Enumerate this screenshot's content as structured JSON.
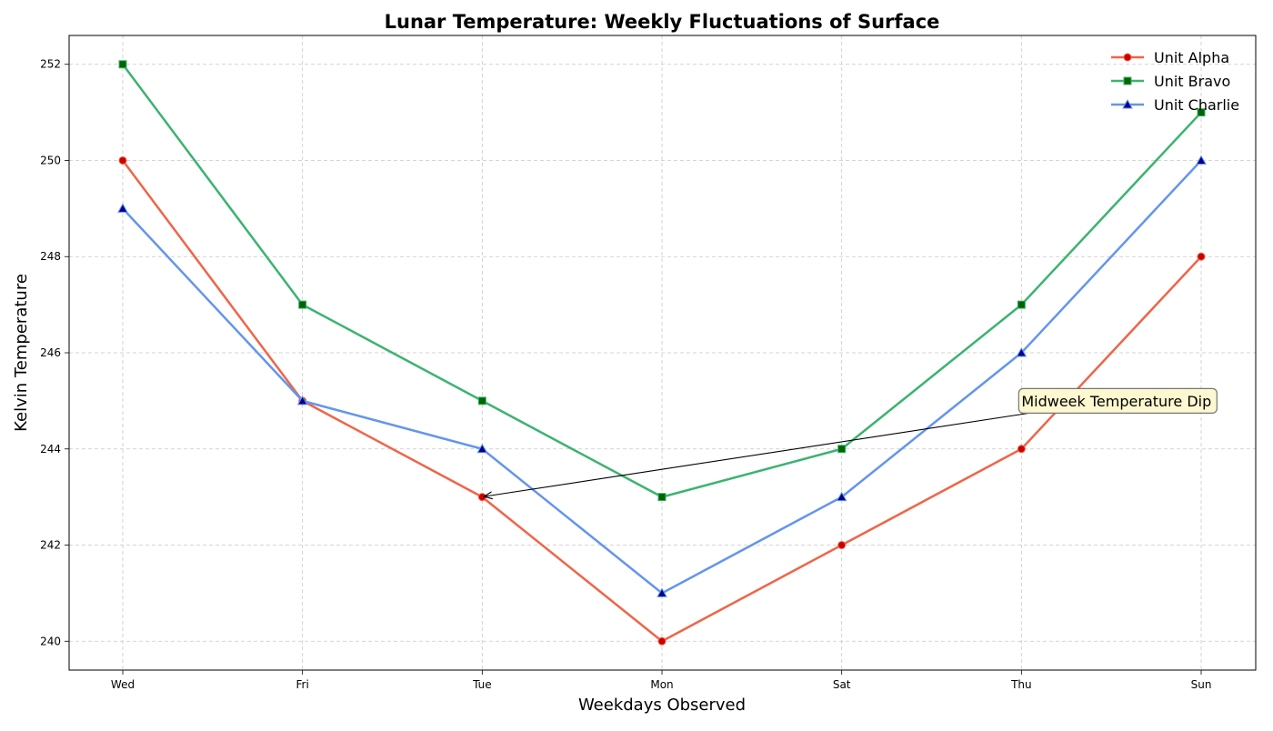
{
  "chart_data": {
    "type": "line",
    "title": "Lunar Temperature: Weekly Fluctuations of Surface",
    "xlabel": "Weekdays Observed",
    "ylabel": "Kelvin Temperature",
    "categories": [
      "Wed",
      "Fri",
      "Tue",
      "Mon",
      "Sat",
      "Thu",
      "Sun"
    ],
    "ylim": [
      239.4,
      252.6
    ],
    "yticks": [
      "240",
      "242",
      "244",
      "246",
      "248",
      "250",
      "252"
    ],
    "grid": true,
    "legend_position": "top-right",
    "series": [
      {
        "name": "Unit Alpha",
        "values": [
          250,
          245,
          243,
          240,
          242,
          244,
          248
        ],
        "color": "#ef6548",
        "marker": "circle",
        "marker_fill": "#cc0000"
      },
      {
        "name": "Unit Bravo",
        "values": [
          252,
          247,
          245,
          243,
          244,
          247,
          251
        ],
        "color": "#3cb371",
        "marker": "square",
        "marker_fill": "#006400"
      },
      {
        "name": "Unit Charlie",
        "values": [
          249,
          245,
          244,
          241,
          243,
          246,
          250
        ],
        "color": "#6495ed",
        "marker": "triangle",
        "marker_fill": "#00008b"
      }
    ],
    "annotation": {
      "text": "Midweek Temperature Dip",
      "target_category": "Tue",
      "target_value": 243,
      "text_category": "Thu",
      "text_value": 245
    }
  }
}
